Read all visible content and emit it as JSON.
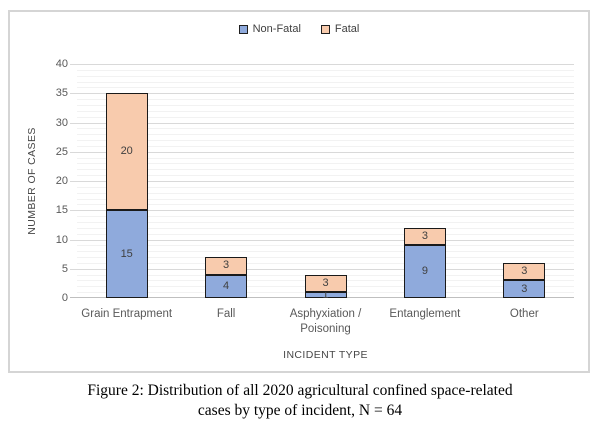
{
  "chart_data": {
    "type": "bar",
    "stacked": true,
    "categories": [
      "Grain Entrapment",
      "Fall",
      "Asphyxiation / Poisoning",
      "Entanglement",
      "Other"
    ],
    "series": [
      {
        "name": "Non-Fatal",
        "color": "#8FAADC",
        "values": [
          15,
          4,
          1,
          9,
          3
        ]
      },
      {
        "name": "Fatal",
        "color": "#F8CBAD",
        "values": [
          20,
          3,
          3,
          3,
          3
        ]
      }
    ],
    "totals": [
      35,
      7,
      4,
      12,
      6
    ],
    "xlabel": "INCIDENT TYPE",
    "ylabel": "NUMBER OF CASES",
    "ylim": [
      0,
      40
    ],
    "y_ticks": [
      0,
      5,
      10,
      15,
      20,
      25,
      30,
      35,
      40
    ],
    "y_major_step": 5,
    "y_minor_step": 1,
    "grid": true,
    "legend_position": "top"
  },
  "caption": {
    "line1": "Figure 2: Distribution of all 2020 agricultural confined space-related",
    "line2": "cases by type of incident, N = 64"
  },
  "colors": {
    "bar_border": "#1a1a1a",
    "gridline_major": "#d9d9d9",
    "gridline_minor": "#f2f2f2",
    "axis_line": "#bfbfbf",
    "axis_text": "#595959",
    "value_label_text": "#404040",
    "frame_border": "#d5d5d5"
  }
}
